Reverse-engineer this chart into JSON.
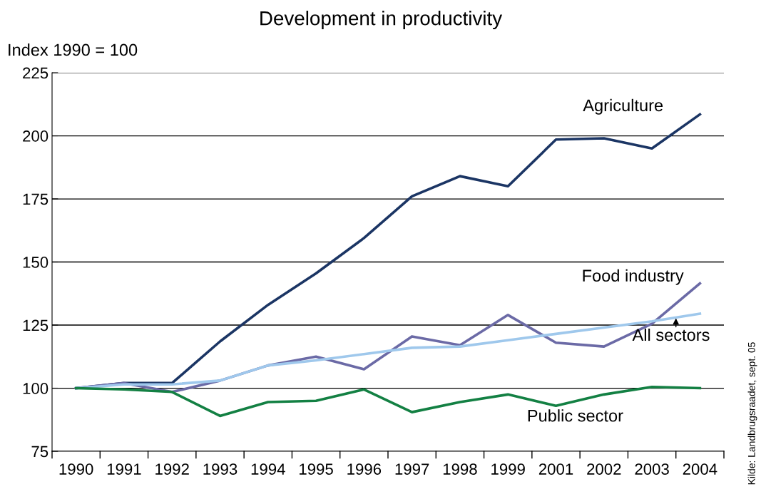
{
  "chart_data": {
    "type": "line",
    "title": "Development in productivity",
    "ylabel": "Index 1990 = 100",
    "categories": [
      "1990",
      "1991",
      "1992",
      "1993",
      "1994",
      "1995",
      "1996",
      "1997",
      "1998",
      "1999",
      "2001",
      "2002",
      "2003",
      "2004"
    ],
    "series": [
      {
        "name": "Agriculture",
        "color": "#1b3564",
        "values": [
          100,
          102,
          102,
          118.5,
          133,
          145.5,
          159.5,
          176,
          184,
          180,
          198.5,
          199,
          195,
          208.5
        ]
      },
      {
        "name": "Food industry",
        "color": "#6b6aa6",
        "values": [
          100,
          102,
          98.5,
          103,
          109,
          112.5,
          107.5,
          120.5,
          117,
          129,
          118,
          116.5,
          125.5,
          141.5
        ]
      },
      {
        "name": "All sectors",
        "color": "#9fc8ec",
        "values": [
          100,
          101.5,
          101.5,
          103,
          109,
          111,
          113.5,
          116,
          116.5,
          119,
          121.5,
          124,
          126.5,
          129.5
        ]
      },
      {
        "name": "Public sector",
        "color": "#138043",
        "values": [
          100,
          99.5,
          98.5,
          89,
          94.5,
          95,
          99.5,
          90.5,
          94.5,
          97.5,
          93,
          97.5,
          100.5,
          100
        ]
      }
    ],
    "ylim": [
      75,
      225
    ],
    "yticks": [
      75,
      100,
      125,
      150,
      175,
      200,
      225
    ],
    "grid": "y",
    "legend": false,
    "marker": "none",
    "line_style": "solid",
    "annotations": [
      "Kilde: Landbrugsraadet, sept. 05"
    ]
  }
}
